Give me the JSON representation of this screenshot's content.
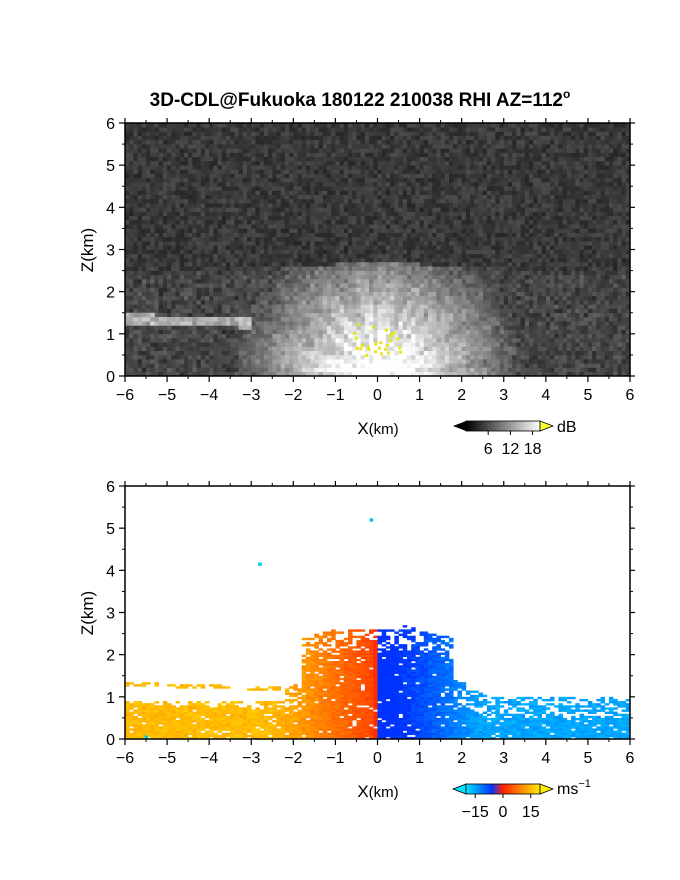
{
  "chart_data": {
    "title_prefix": "3D-CDL@Fukuoka 180122 210038 RHI AZ=112",
    "title_degree": "o",
    "panels": [
      {
        "id": "backscatter",
        "type": "heatmap",
        "xlabel_main": "X",
        "xlabel_unit": "(km)",
        "ylabel": "Z(km)",
        "xlim": [
          -6,
          6
        ],
        "ylim": [
          0,
          6
        ],
        "xticks": [
          -6,
          -5,
          -4,
          -3,
          -2,
          -1,
          0,
          1,
          2,
          3,
          4,
          5,
          6
        ],
        "yticks": [
          0,
          1,
          2,
          3,
          4,
          5,
          6
        ],
        "colorbar": {
          "unit": "dB",
          "tick_values": [
            6,
            12,
            18
          ],
          "range": [
            0,
            20
          ],
          "colors": [
            "#000000",
            "#ffffff"
          ],
          "over_color": "#ffff33"
        },
        "features": {
          "background_level_db": 3,
          "aerosol_layer_top_km": 2.7,
          "elevated_layer_height_km": 1.35,
          "elevated_layer_extent_km": [
            -6,
            -3
          ],
          "strong_echo_color": "#e6e617"
        }
      },
      {
        "id": "doppler_velocity",
        "type": "heatmap",
        "xlabel_main": "X",
        "xlabel_unit": "(km)",
        "ylabel": "Z(km)",
        "xlim": [
          -6,
          6
        ],
        "ylim": [
          0,
          6
        ],
        "xticks": [
          -6,
          -5,
          -4,
          -3,
          -2,
          -1,
          0,
          1,
          2,
          3,
          4,
          5,
          6
        ],
        "yticks": [
          0,
          1,
          2,
          3,
          4,
          5,
          6
        ],
        "colorbar": {
          "unit_main": "ms",
          "unit_exp": "−1",
          "tick_labels": [
            "−15",
            "0",
            "15"
          ],
          "tick_values": [
            -15,
            0,
            15
          ],
          "range": [
            -20,
            20
          ],
          "colors": [
            "#00e5ff",
            "#0033ff",
            "#ff2200",
            "#ffee00"
          ]
        },
        "features": {
          "echo_top_km": 2.7,
          "left_side_velocity_ms": 15,
          "right_side_velocity_ms": -15,
          "isolated_points_km": [
            [
              -0.15,
              5.2
            ],
            [
              -2.8,
              4.15
            ],
            [
              -5.5,
              0.05
            ]
          ]
        }
      }
    ]
  }
}
